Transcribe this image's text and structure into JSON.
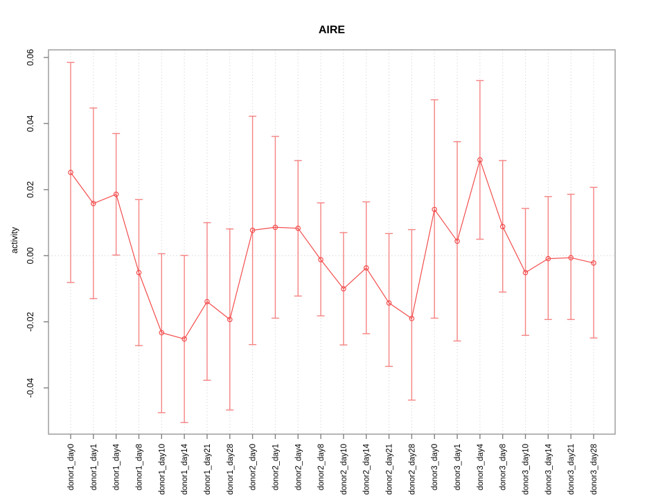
{
  "chart_data": {
    "type": "line",
    "title": "AIRE",
    "ylabel": "activity",
    "xlabel": "",
    "legend": "none",
    "grid": "dotted vertical gridline at every category; dotted horizontal line at y=0",
    "categories": [
      "donor1_day0",
      "donor1_day1",
      "donor1_day4",
      "donor1_day8",
      "donor1_day10",
      "donor1_day14",
      "donor1_day21",
      "donor1_day28",
      "donor2_day0",
      "donor2_day1",
      "donor2_day4",
      "donor2_day8",
      "donor2_day10",
      "donor2_day14",
      "donor2_day21",
      "donor2_day28",
      "donor3_day0",
      "donor3_day1",
      "donor3_day4",
      "donor3_day8",
      "donor3_day10",
      "donor3_day14",
      "donor3_day21",
      "donor3_day28"
    ],
    "series": [
      {
        "name": "activity",
        "values": [
          0.0252,
          0.0158,
          0.0186,
          -0.0051,
          -0.0233,
          -0.0252,
          -0.0139,
          -0.0193,
          0.0077,
          0.0086,
          0.0083,
          -0.0012,
          -0.01,
          -0.0037,
          -0.0143,
          -0.019,
          0.014,
          0.0044,
          0.029,
          0.0088,
          -0.0051,
          -0.0009,
          -0.0006,
          -0.0022
        ],
        "error_high": [
          0.0585,
          0.0447,
          0.037,
          0.017,
          0.0006,
          0.0001,
          0.01,
          0.0081,
          0.0422,
          0.0361,
          0.0288,
          0.016,
          0.007,
          0.0163,
          0.0067,
          0.0079,
          0.0472,
          0.0345,
          0.053,
          0.0288,
          0.0143,
          0.0179,
          0.0186,
          0.0207
        ],
        "error_low": [
          -0.0081,
          -0.013,
          0.0002,
          -0.0272,
          -0.0475,
          -0.0505,
          -0.0377,
          -0.0467,
          -0.0269,
          -0.0189,
          -0.0122,
          -0.0182,
          -0.027,
          -0.0236,
          -0.0335,
          -0.0437,
          -0.0189,
          -0.0258,
          0.005,
          -0.011,
          -0.0241,
          -0.0193,
          -0.0193,
          -0.0249
        ]
      }
    ],
    "yticks": [
      -0.04,
      -0.02,
      0,
      0.02,
      0.04,
      0.06
    ],
    "ytick_labels": [
      "-0.04",
      "-0.02",
      "0.00",
      "0.02",
      "0.04",
      "0.06"
    ],
    "ylim": [
      -0.054,
      0.0623
    ],
    "marker": "open-circle",
    "colors": {
      "line": "#f34c4c",
      "marker": "#f34c4c",
      "error_bar": "#f58282",
      "gridline": "#d9d9d9",
      "zero_line": "#d4d4d4",
      "box_border": "#969696",
      "tick": "#808080",
      "text": "#000000"
    }
  }
}
